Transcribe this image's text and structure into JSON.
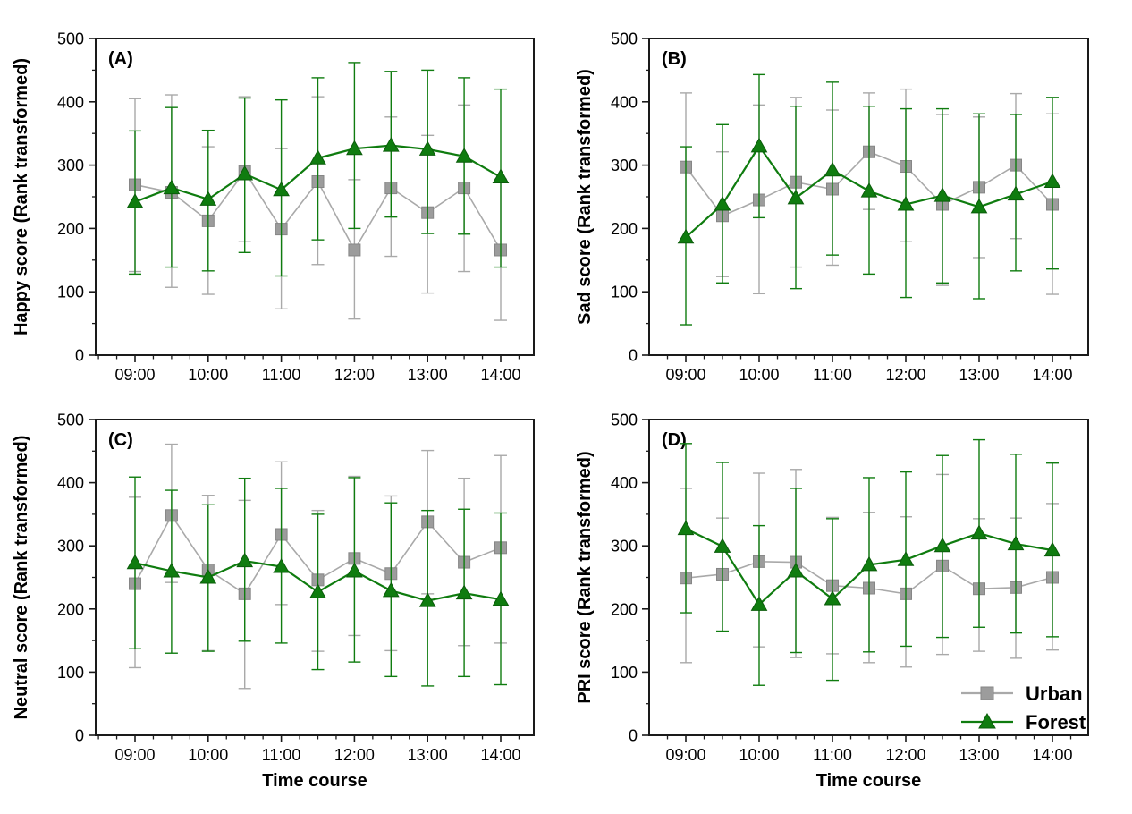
{
  "figure": {
    "background": "#ffffff",
    "description": "Four-panel line chart with error bars comparing Urban and Forest groups over time",
    "x_axis_label": "Time course",
    "colors": {
      "urban_marker": "#9c9c9c",
      "urban_line": "#a9a9a9",
      "forest": "#0f7c0f",
      "axis": "#1a1a1a",
      "text": "#000000"
    },
    "legend": {
      "location": "lower right of panel D",
      "items": [
        {
          "label": "Urban",
          "marker": "square",
          "color": "#9c9c9c",
          "line_color": "#a9a9a9"
        },
        {
          "label": "Forest",
          "marker": "triangle",
          "color": "#0f7c0f",
          "line_color": "#0f7c0f"
        }
      ]
    }
  },
  "chart_data": [
    {
      "type": "line",
      "panel": "A",
      "panel_label": "(A)",
      "ylabel": "Happy score (Rank transformed)",
      "xlabel": "",
      "ylim": [
        0,
        500
      ],
      "yticks": [
        0,
        100,
        200,
        300,
        400,
        500
      ],
      "y_minor_interval": 50,
      "grid": false,
      "legend": false,
      "categories": [
        "09:00",
        "09:30",
        "10:00",
        "10:30",
        "11:00",
        "11:30",
        "12:00",
        "12:30",
        "13:00",
        "13:30",
        "14:00"
      ],
      "x_tick_labels": [
        "09:00",
        "10:00",
        "11:00",
        "12:00",
        "13:00",
        "14:00"
      ],
      "series": [
        {
          "name": "Urban",
          "marker": "square",
          "color": "#9c9c9c",
          "line_color": "#a9a9a9",
          "values": [
            269,
            257,
            212,
            290,
            199,
            274,
            166,
            264,
            225,
            264,
            166
          ],
          "err_lo": [
            132,
            107,
            96,
            179,
            73,
            143,
            57,
            156,
            98,
            132,
            55
          ],
          "err_hi": [
            405,
            411,
            329,
            408,
            326,
            408,
            277,
            376,
            347,
            395,
            278
          ]
        },
        {
          "name": "Forest",
          "marker": "triangle",
          "color": "#0f7c0f",
          "line_color": "#0f7c0f",
          "values": [
            242,
            264,
            246,
            286,
            261,
            311,
            326,
            331,
            325,
            314,
            281
          ],
          "err_lo": [
            128,
            139,
            133,
            162,
            125,
            182,
            200,
            218,
            192,
            191,
            139
          ],
          "err_hi": [
            354,
            391,
            355,
            406,
            403,
            438,
            462,
            448,
            450,
            438,
            420
          ]
        }
      ]
    },
    {
      "type": "line",
      "panel": "B",
      "panel_label": "(B)",
      "ylabel": "Sad score (Rank transformed)",
      "xlabel": "",
      "ylim": [
        0,
        500
      ],
      "yticks": [
        0,
        100,
        200,
        300,
        400,
        500
      ],
      "y_minor_interval": 50,
      "grid": false,
      "legend": false,
      "categories": [
        "09:00",
        "09:30",
        "10:00",
        "10:30",
        "11:00",
        "11:30",
        "12:00",
        "12:30",
        "13:00",
        "13:30",
        "14:00"
      ],
      "x_tick_labels": [
        "09:00",
        "10:00",
        "11:00",
        "12:00",
        "13:00",
        "14:00"
      ],
      "series": [
        {
          "name": "Urban",
          "marker": "square",
          "color": "#9c9c9c",
          "line_color": "#a9a9a9",
          "values": [
            297,
            220,
            245,
            273,
            262,
            321,
            298,
            238,
            265,
            300,
            238
          ],
          "err_lo": [
            182,
            124,
            97,
            139,
            142,
            230,
            179,
            110,
            154,
            184,
            96
          ],
          "err_hi": [
            414,
            321,
            395,
            407,
            387,
            414,
            420,
            380,
            376,
            413,
            381
          ]
        },
        {
          "name": "Forest",
          "marker": "triangle",
          "color": "#0f7c0f",
          "line_color": "#0f7c0f",
          "values": [
            186,
            238,
            330,
            248,
            292,
            259,
            238,
            252,
            234,
            254,
            274
          ],
          "err_lo": [
            48,
            114,
            217,
            105,
            158,
            128,
            91,
            114,
            89,
            133,
            136
          ],
          "err_hi": [
            329,
            364,
            443,
            393,
            431,
            393,
            389,
            389,
            381,
            380,
            407
          ]
        }
      ]
    },
    {
      "type": "line",
      "panel": "C",
      "panel_label": "(C)",
      "ylabel": "Neutral score (Rank transformed)",
      "xlabel": "Time course",
      "ylim": [
        0,
        500
      ],
      "yticks": [
        0,
        100,
        200,
        300,
        400,
        500
      ],
      "y_minor_interval": 50,
      "grid": false,
      "legend": false,
      "categories": [
        "09:00",
        "09:30",
        "10:00",
        "10:30",
        "11:00",
        "11:30",
        "12:00",
        "12:30",
        "13:00",
        "13:30",
        "14:00"
      ],
      "x_tick_labels": [
        "09:00",
        "10:00",
        "11:00",
        "12:00",
        "13:00",
        "14:00"
      ],
      "series": [
        {
          "name": "Urban",
          "marker": "square",
          "color": "#9c9c9c",
          "line_color": "#a9a9a9",
          "values": [
            240,
            348,
            262,
            224,
            318,
            246,
            280,
            256,
            338,
            274,
            297
          ],
          "err_lo": [
            107,
            242,
            134,
            74,
            207,
            133,
            158,
            134,
            224,
            142,
            146
          ],
          "err_hi": [
            377,
            461,
            380,
            372,
            433,
            356,
            410,
            379,
            451,
            407,
            443
          ]
        },
        {
          "name": "Forest",
          "marker": "triangle",
          "color": "#0f7c0f",
          "line_color": "#0f7c0f",
          "values": [
            273,
            260,
            250,
            276,
            267,
            227,
            260,
            229,
            213,
            225,
            215
          ],
          "err_lo": [
            137,
            130,
            133,
            149,
            146,
            104,
            116,
            93,
            78,
            93,
            80
          ],
          "err_hi": [
            409,
            388,
            365,
            407,
            391,
            350,
            408,
            368,
            356,
            358,
            352
          ]
        }
      ]
    },
    {
      "type": "line",
      "panel": "D",
      "panel_label": "(D)",
      "ylabel": "PRI score (Rank transformed)",
      "xlabel": "Time course",
      "ylim": [
        0,
        500
      ],
      "yticks": [
        0,
        100,
        200,
        300,
        400,
        500
      ],
      "y_minor_interval": 50,
      "grid": false,
      "legend": true,
      "categories": [
        "09:00",
        "09:30",
        "10:00",
        "10:30",
        "11:00",
        "11:30",
        "12:00",
        "12:30",
        "13:00",
        "13:30",
        "14:00"
      ],
      "x_tick_labels": [
        "09:00",
        "10:00",
        "11:00",
        "12:00",
        "13:00",
        "14:00"
      ],
      "series": [
        {
          "name": "Urban",
          "marker": "square",
          "color": "#9c9c9c",
          "line_color": "#a9a9a9",
          "values": [
            249,
            255,
            275,
            274,
            237,
            233,
            224,
            268,
            232,
            234,
            250
          ],
          "err_lo": [
            115,
            164,
            140,
            123,
            129,
            115,
            108,
            128,
            133,
            122,
            135
          ],
          "err_hi": [
            391,
            344,
            415,
            421,
            345,
            353,
            346,
            413,
            343,
            344,
            367
          ]
        },
        {
          "name": "Forest",
          "marker": "triangle",
          "color": "#0f7c0f",
          "line_color": "#0f7c0f",
          "values": [
            327,
            299,
            207,
            260,
            216,
            270,
            278,
            300,
            320,
            303,
            293
          ],
          "err_lo": [
            194,
            165,
            79,
            131,
            87,
            132,
            141,
            155,
            171,
            162,
            156
          ],
          "err_hi": [
            462,
            432,
            332,
            391,
            343,
            408,
            417,
            443,
            468,
            445,
            431
          ]
        }
      ]
    }
  ]
}
